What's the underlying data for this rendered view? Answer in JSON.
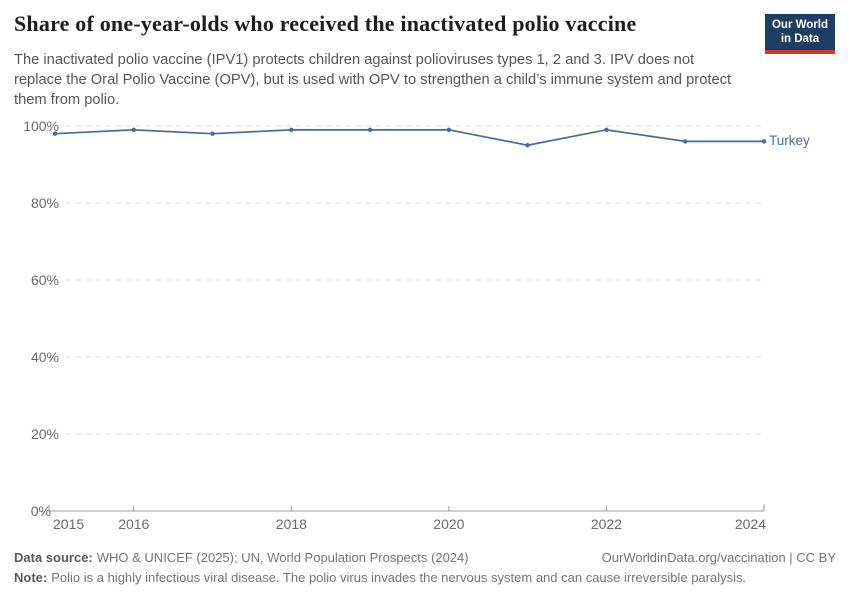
{
  "header": {
    "title": "Share of one-year-olds who received the inactivated polio vaccine",
    "subtitle": "The inactivated polio vaccine (IPV1) protects children against polioviruses types 1, 2 and 3. IPV does not replace the Oral Polio Vaccine (OPV), but is used with OPV to strengthen a child’s immune system and protect them from polio.",
    "logo": {
      "line1": "Our World",
      "line2": "in Data"
    }
  },
  "chart_data": {
    "type": "line",
    "title": "Share of one-year-olds who received the inactivated polio vaccine",
    "x": [
      2015,
      2016,
      2017,
      2018,
      2019,
      2020,
      2021,
      2022,
      2023,
      2024
    ],
    "series": [
      {
        "name": "Turkey",
        "color": "#4C6A9C",
        "values": [
          98,
          99,
          98,
          99,
          99,
          99,
          95,
          99,
          96,
          96
        ]
      }
    ],
    "ylim": [
      0,
      100
    ],
    "yticks": [
      0,
      20,
      40,
      60,
      80,
      100
    ],
    "ytick_suffix": "%",
    "xtick_labels": [
      2015,
      2016,
      2018,
      2020,
      2022,
      2024
    ],
    "grid": "horizontal-dashed",
    "legend": "line-end-label"
  },
  "colors": {
    "line": "#4C6A9C",
    "grid": "#dcdcdc",
    "axis": "#9e9e9e",
    "logo_bg": "#1d3d63",
    "logo_stripe": "#d8352a"
  },
  "footer": {
    "datasource_label": "Data source:",
    "datasource_text": "WHO & UNICEF (2025); UN, World Population Prospects (2024)",
    "rights": "OurWorldinData.org/vaccination | CC BY",
    "note_label": "Note:",
    "note_text": "Polio is a highly infectious viral disease. The polio virus invades the nervous system and can cause irreversible paralysis."
  }
}
